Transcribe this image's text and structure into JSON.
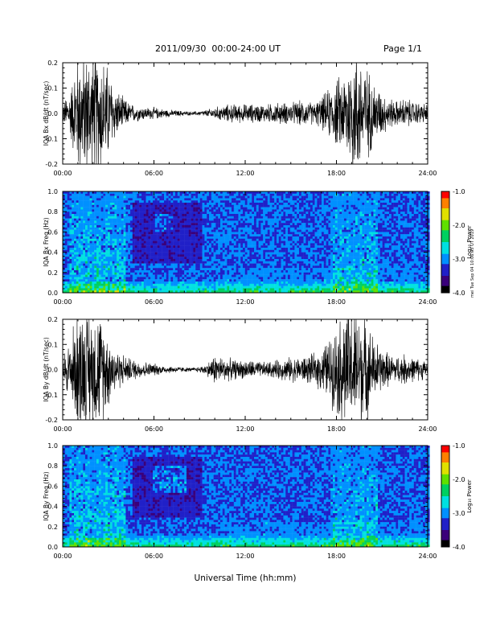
{
  "header": {
    "title": "2011/09/30  00:00-24:00 UT",
    "page": "Page 1/1"
  },
  "side_note": "mei Tue Sep 04 10:06:03 UT 2019",
  "colorbar": {
    "label": "Log₁₀ Power",
    "ticks": [
      "-1.0",
      "-2.0",
      "-3.0",
      "-4.0"
    ],
    "range": [
      -4.0,
      -1.0
    ],
    "palette": [
      "#000000",
      "#3a007a",
      "#2020c8",
      "#0090ff",
      "#00e0e0",
      "#00d060",
      "#60e000",
      "#e0e000",
      "#ff8000",
      "#ff0000"
    ]
  },
  "chart_data": [
    {
      "type": "line",
      "title": "",
      "ylabel": "IQA Bx dB/dt (nT/sec)",
      "xlabel": "",
      "ylim": [
        -0.2,
        0.2
      ],
      "y_ticks": [
        "0.2",
        "0.1",
        "0.0",
        "-0.1",
        "-0.2"
      ],
      "x_ticks": [
        "00:00",
        "06:00",
        "12:00",
        "18:00",
        "24:00"
      ],
      "series": [
        {
          "hours": [
            0,
            0.5,
            1,
            1.5,
            2,
            2.5,
            3,
            3.5,
            4,
            4.5,
            5,
            5.5,
            6,
            6.5,
            7,
            7.5,
            8,
            8.5,
            9,
            9.5,
            10,
            10.5,
            11,
            11.5,
            12,
            12.5,
            13,
            13.5,
            14,
            14.5,
            15,
            15.5,
            16,
            16.5,
            17,
            17.5,
            18,
            18.5,
            19,
            19.5,
            20,
            20.5,
            21,
            21.5,
            22,
            22.5,
            23,
            23.5,
            24
          ],
          "amplitude": [
            0.03,
            0.08,
            0.2,
            0.2,
            0.2,
            0.2,
            0.15,
            0.08,
            0.05,
            0.03,
            0.025,
            0.02,
            0.02,
            0.015,
            0.012,
            0.01,
            0.008,
            0.006,
            0.008,
            0.012,
            0.02,
            0.025,
            0.03,
            0.03,
            0.03,
            0.03,
            0.03,
            0.03,
            0.035,
            0.035,
            0.035,
            0.04,
            0.04,
            0.035,
            0.05,
            0.08,
            0.11,
            0.13,
            0.2,
            0.2,
            0.15,
            0.1,
            0.07,
            0.05,
            0.04,
            0.05,
            0.04,
            0.035,
            0.03
          ]
        }
      ]
    },
    {
      "type": "heatmap",
      "title": "",
      "ylabel": "IQA Bx Freq (Hz)",
      "xlabel": "",
      "ylim": [
        0.0,
        1.0
      ],
      "y_ticks": [
        "1.0",
        "0.8",
        "0.6",
        "0.4",
        "0.2",
        "0.0"
      ],
      "x_ticks": [
        "00:00",
        "06:00",
        "12:00",
        "18:00",
        "24:00"
      ],
      "z_range": [
        -4.0,
        -1.0
      ],
      "description_of_features": "broadband noise, strongest below 0.2 Hz; vertical bursts near 01:00-02:00 and 18:00-20:00; patch near 0.6-0.7 Hz around 06:30"
    },
    {
      "type": "line",
      "title": "",
      "ylabel": "IQA By dB/dt (nT/sec)",
      "xlabel": "",
      "ylim": [
        -0.2,
        0.2
      ],
      "y_ticks": [
        "0.2",
        "0.1",
        "0.0",
        "-0.1",
        "-0.2"
      ],
      "x_ticks": [
        "00:00",
        "06:00",
        "12:00",
        "18:00",
        "24:00"
      ],
      "series": [
        {
          "hours": [
            0,
            0.5,
            1,
            1.5,
            2,
            2.5,
            3,
            3.5,
            4,
            4.5,
            5,
            5.5,
            6,
            6.5,
            7,
            7.5,
            8,
            8.5,
            9,
            9.5,
            10,
            10.5,
            11,
            11.5,
            12,
            12.5,
            13,
            13.5,
            14,
            14.5,
            15,
            15.5,
            16,
            16.5,
            17,
            17.5,
            18,
            18.5,
            19,
            19.5,
            20,
            20.5,
            21,
            21.5,
            22,
            22.5,
            23,
            23.5,
            24
          ],
          "amplitude": [
            0.05,
            0.1,
            0.2,
            0.2,
            0.2,
            0.18,
            0.12,
            0.07,
            0.05,
            0.035,
            0.03,
            0.025,
            0.02,
            0.015,
            0.012,
            0.01,
            0.008,
            0.006,
            0.01,
            0.02,
            0.05,
            0.04,
            0.035,
            0.03,
            0.03,
            0.03,
            0.025,
            0.025,
            0.03,
            0.035,
            0.04,
            0.04,
            0.045,
            0.05,
            0.07,
            0.1,
            0.14,
            0.2,
            0.2,
            0.2,
            0.16,
            0.1,
            0.07,
            0.05,
            0.045,
            0.05,
            0.04,
            0.035,
            0.03
          ]
        }
      ]
    },
    {
      "type": "heatmap",
      "title": "",
      "ylabel": "IQA By Freq (Hz)",
      "xlabel": "Universal Time (hh:mm)",
      "ylim": [
        0.0,
        1.0
      ],
      "y_ticks": [
        "1.0",
        "0.8",
        "0.6",
        "0.4",
        "0.2",
        "0.0"
      ],
      "x_ticks": [
        "00:00",
        "06:00",
        "12:00",
        "18:00",
        "24:00"
      ],
      "z_range": [
        -4.0,
        -1.0
      ],
      "description_of_features": "similar to Bx spectrogram; pronounced patch near 0.6-0.8 Hz around 06:00-08:00; bursts near 01:00-02:00 and 18:00-20:00"
    }
  ]
}
